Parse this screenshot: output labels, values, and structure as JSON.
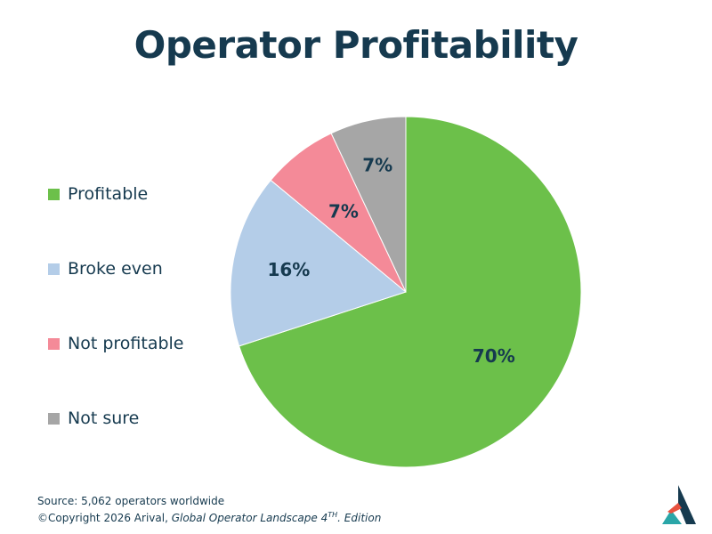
{
  "page": {
    "title": "Operator Profitability"
  },
  "legend": [
    {
      "label": "Profitable",
      "color": "#6cc04a"
    },
    {
      "label": "Broke even",
      "color": "#b4cde8"
    },
    {
      "label": "Not profitable",
      "color": "#f48a98"
    },
    {
      "label": "Not sure",
      "color": "#a6a6a6"
    }
  ],
  "chart_data": {
    "type": "pie",
    "title": "Operator Profitability",
    "categories": [
      "Profitable",
      "Broke even",
      "Not profitable",
      "Not sure"
    ],
    "values": [
      70,
      16,
      7,
      7
    ],
    "labels": [
      "70%",
      "16%",
      "7%",
      "7%"
    ],
    "colors": [
      "#6cc04a",
      "#b4cde8",
      "#f48a98",
      "#a6a6a6"
    ],
    "legend_position": "left"
  },
  "footer": {
    "source": "Source: 5,062 operators worldwide",
    "copyright_prefix": "©Copyright 2026 Arival, ",
    "publication": "Global Operator Landscape 4",
    "superscript": "TH",
    "suffix": ". Edition"
  },
  "logo": {
    "icon": "arival-logo-icon",
    "colors": [
      "#163a4f",
      "#2aa6a8",
      "#e8523f"
    ]
  }
}
